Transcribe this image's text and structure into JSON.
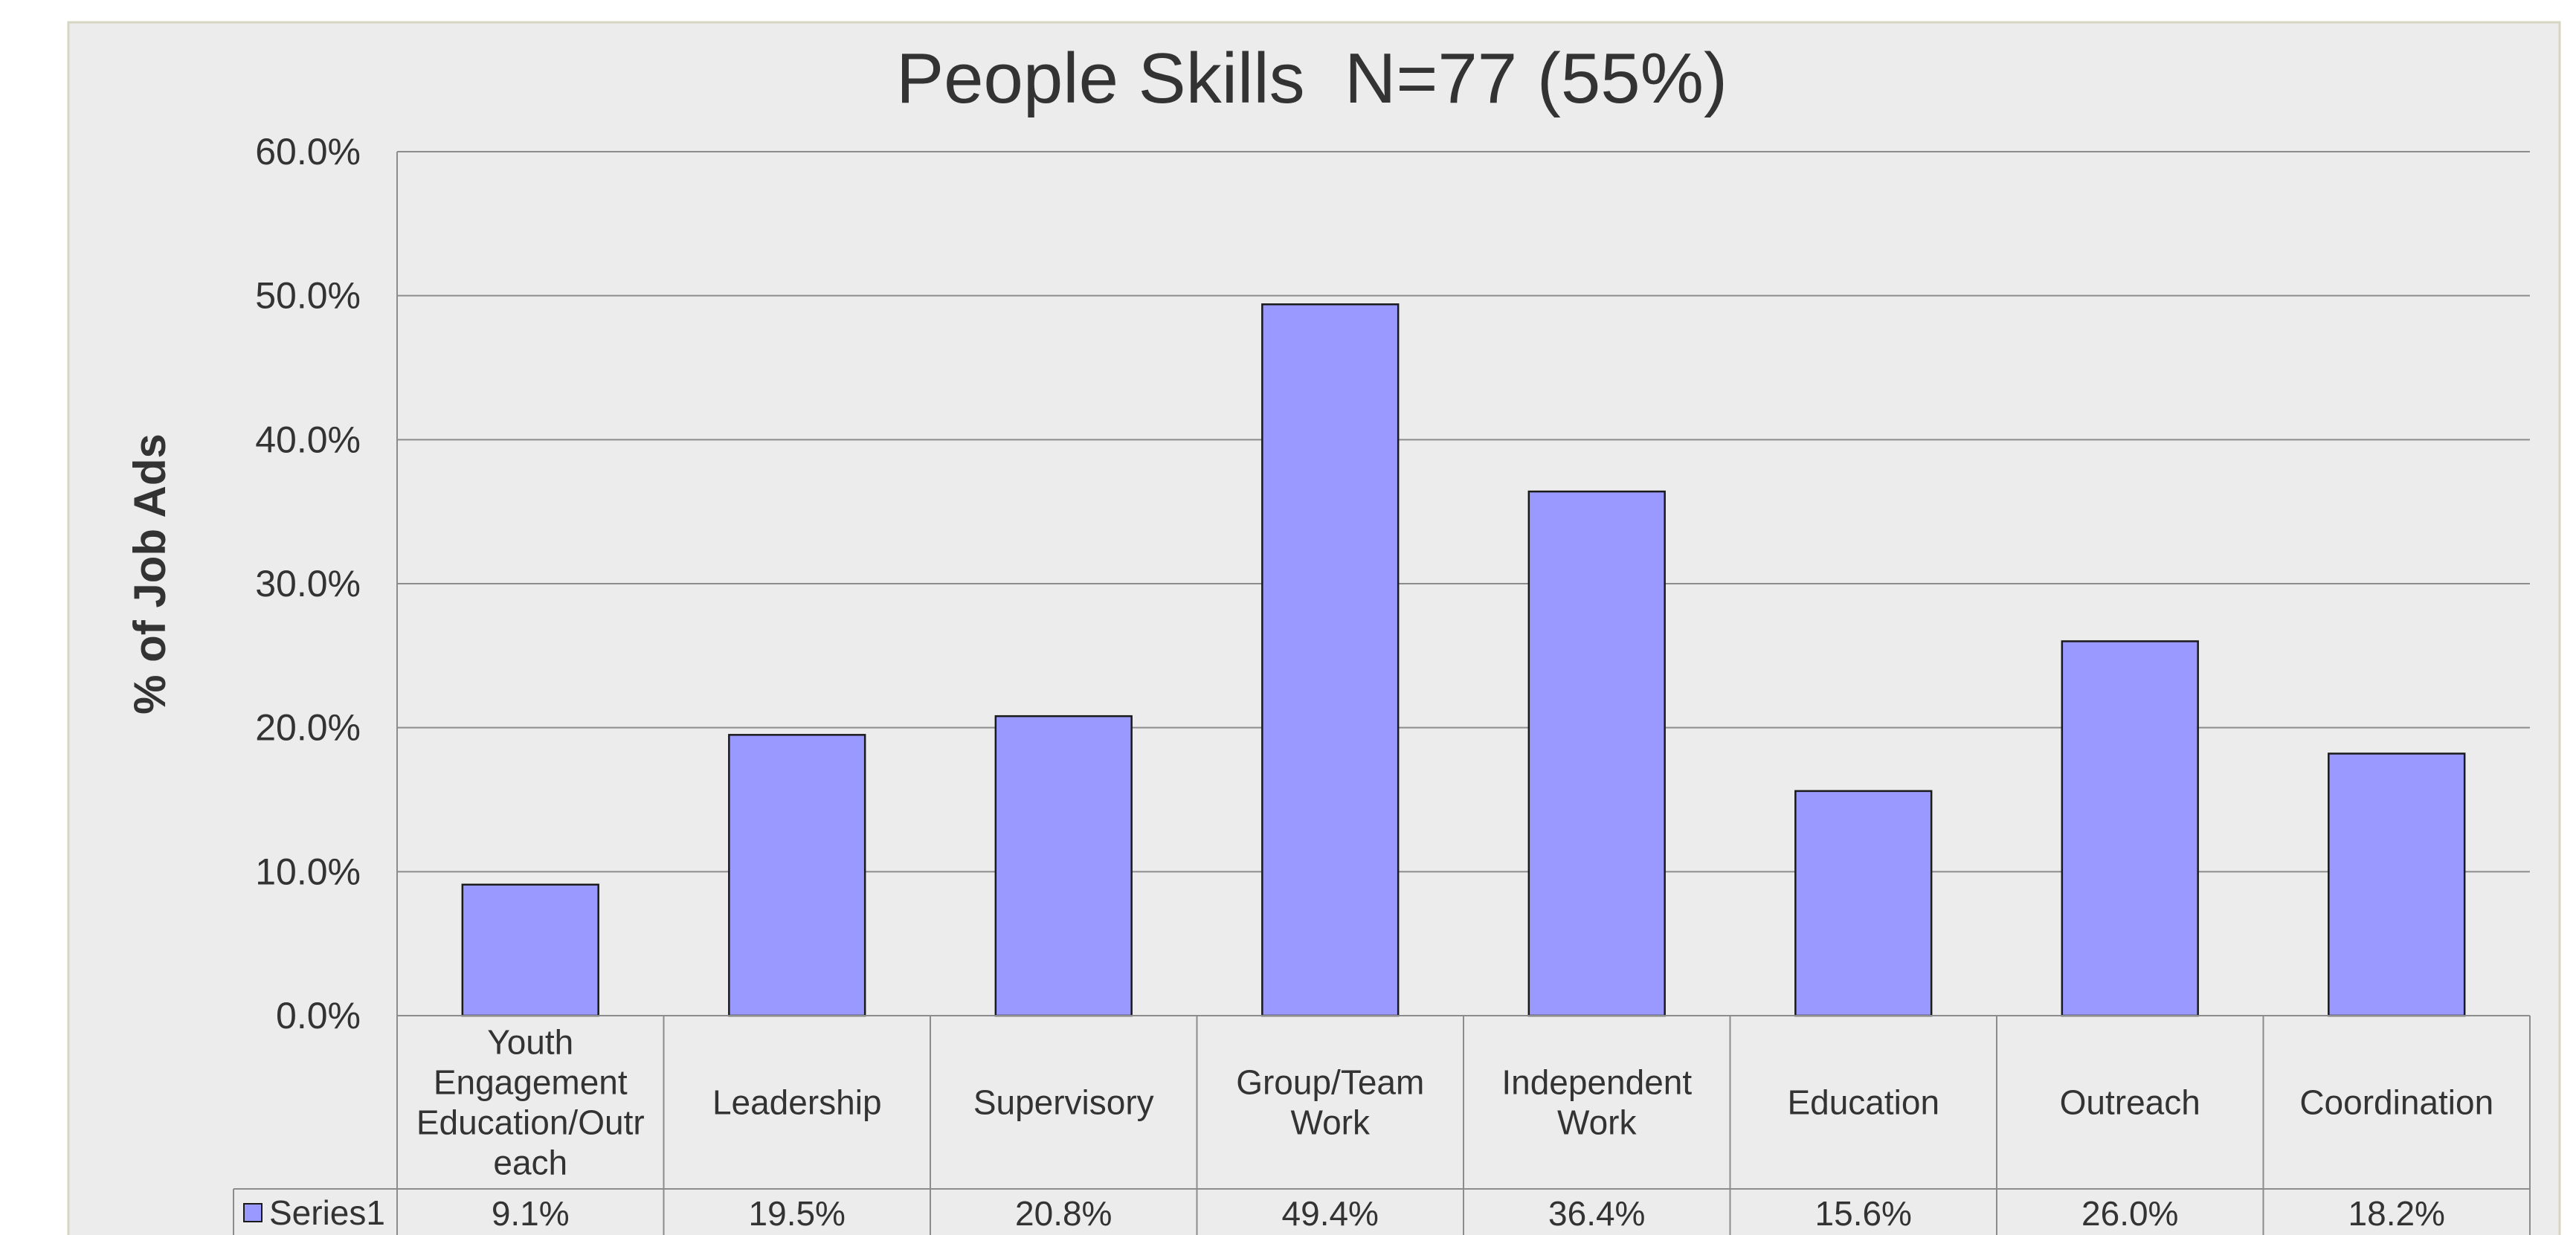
{
  "chart_data": {
    "type": "bar",
    "title": "People Skills  N=77 (55%)",
    "xlabel": "",
    "ylabel": "% of Job Ads",
    "ylim": [
      0,
      60
    ],
    "yticks": [
      "0.0%",
      "10.0%",
      "20.0%",
      "30.0%",
      "40.0%",
      "50.0%",
      "60.0%"
    ],
    "grid": true,
    "legend_placement": "data-table-left",
    "categories": [
      [
        "Youth",
        "Engagement",
        "Education/Outr",
        "each"
      ],
      [
        "Leadership"
      ],
      [
        "Supervisory"
      ],
      [
        "Group/Team",
        "Work"
      ],
      [
        "Independent",
        "Work"
      ],
      [
        "Education"
      ],
      [
        "Outreach"
      ],
      [
        "Coordination"
      ]
    ],
    "series": [
      {
        "name": "Series1",
        "values": [
          9.1,
          19.5,
          20.8,
          49.4,
          36.4,
          15.6,
          26.0,
          18.2
        ],
        "labels": [
          "9.1%",
          "19.5%",
          "20.8%",
          "49.4%",
          "36.4%",
          "15.6%",
          "26.0%",
          "18.2%"
        ]
      }
    ]
  },
  "colors": {
    "bar_fill": "#9999ff",
    "bar_stroke": "#1a1a1a",
    "background": "#ececec",
    "frame": "#d6d6c2",
    "grid": "#8c8c8c",
    "text": "#333333"
  }
}
